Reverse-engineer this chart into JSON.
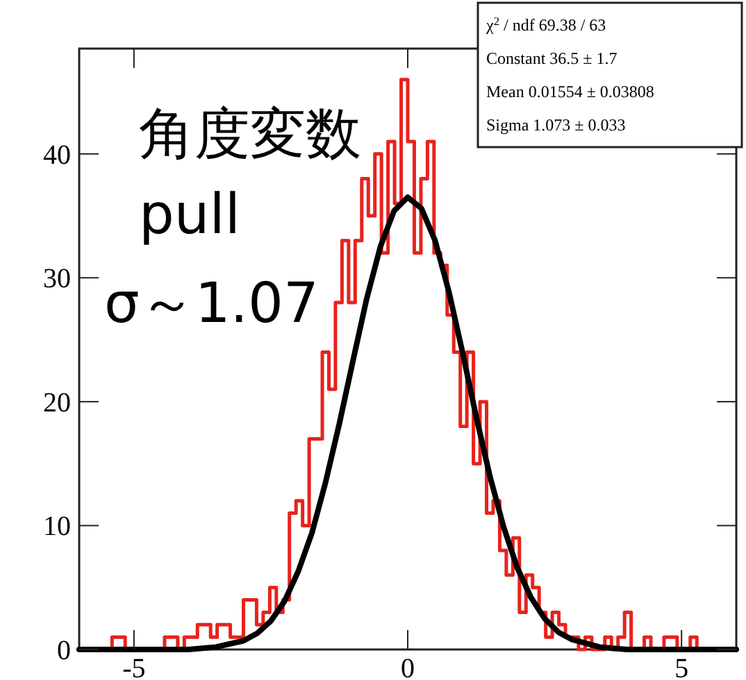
{
  "chart_data": {
    "type": "histogram",
    "title": "角度変数 pull",
    "subtitle": "σ～1.07",
    "annotations": [
      "χ$^{2}$ / ndf   69.38 / 63",
      "Constant   36.5 ± 1.7",
      "Mean   0.01554 ± 0.03808",
      "Sigma   1.073 ± 0.033"
    ],
    "bins": [
      -6,
      -5.88,
      -5.76,
      -5.64,
      -5.52,
      -5.4,
      -5.28,
      -5.16,
      -5.04,
      -4.92,
      -4.8,
      -4.68,
      -4.56,
      -4.44,
      -4.32,
      -4.2,
      -4.08,
      -3.96,
      -3.84,
      -3.72,
      -3.6,
      -3.48,
      -3.36,
      -3.24,
      -3.12,
      -3,
      -2.88,
      -2.76,
      -2.64,
      -2.52,
      -2.4,
      -2.28,
      -2.16,
      -2.04,
      -1.92,
      -1.8,
      -1.68,
      -1.56,
      -1.44,
      -1.32,
      -1.2,
      -1.08,
      -0.96,
      -0.84,
      -0.72,
      -0.6,
      -0.48,
      -0.36,
      -0.24,
      -0.12,
      0,
      0.12,
      0.24,
      0.36,
      0.48,
      0.6,
      0.72,
      0.84,
      0.96,
      1.08,
      1.2,
      1.32,
      1.44,
      1.56,
      1.68,
      1.8,
      1.92,
      2.04,
      2.16,
      2.28,
      2.4,
      2.52,
      2.64,
      2.76,
      2.88,
      3,
      3.12,
      3.24,
      3.36,
      3.48,
      3.6,
      3.72,
      3.84,
      3.96,
      4.08,
      4.2,
      4.32,
      4.44,
      4.56,
      4.68,
      4.8,
      4.92,
      5.04,
      5.16,
      5.28,
      5.4,
      5.52,
      5.64,
      5.76,
      5.88,
      6
    ],
    "values": [
      0,
      0,
      0,
      0,
      0,
      1,
      1,
      0,
      0,
      0,
      0,
      0,
      0,
      1,
      1,
      0,
      1,
      1,
      2,
      2,
      1,
      2,
      2,
      1,
      1,
      4,
      4,
      2,
      3,
      5,
      3,
      4,
      11,
      12,
      10,
      17,
      17,
      24,
      21,
      28,
      33,
      28,
      33,
      38,
      35,
      40,
      32,
      41,
      36,
      46,
      41,
      32,
      38,
      41,
      32,
      31,
      27,
      24,
      18,
      24,
      15,
      20,
      11,
      12,
      8,
      6,
      9,
      3,
      6,
      5,
      3,
      1,
      3,
      2,
      1,
      1,
      0,
      1,
      0,
      0,
      1,
      0,
      1,
      3,
      0,
      0,
      1,
      0,
      0,
      1,
      1,
      0,
      0,
      1,
      0,
      0,
      0,
      0,
      0,
      0
    ],
    "color": "#e8221c",
    "series": [
      {
        "type": "line",
        "color": "#000000",
        "x": [
          -6,
          -4,
          -3.5,
          -3,
          -2.75,
          -2.5,
          -2.25,
          -2,
          -1.75,
          -1.5,
          -1.25,
          -1,
          -0.75,
          -0.5,
          -0.25,
          0,
          0.25,
          0.5,
          0.75,
          1,
          1.25,
          1.5,
          1.75,
          2,
          2.25,
          2.5,
          2.75,
          3,
          3.5,
          4,
          6
        ],
        "values": [
          0,
          0,
          0.2,
          0.7,
          1.3,
          2.3,
          3.9,
          6.3,
          9.4,
          13.5,
          18.2,
          23.3,
          28.3,
          32.5,
          35.4,
          36.5,
          35.6,
          33,
          28.9,
          24,
          18.8,
          14,
          9.9,
          6.6,
          4.2,
          2.5,
          1.4,
          0.8,
          0.2,
          0,
          0
        ]
      }
    ],
    "xlim": [
      -6,
      6
    ],
    "ylim": [
      0,
      48.5
    ],
    "xticks": [
      -5,
      0,
      5
    ],
    "yticks": [
      0,
      10,
      20,
      30,
      40
    ]
  }
}
